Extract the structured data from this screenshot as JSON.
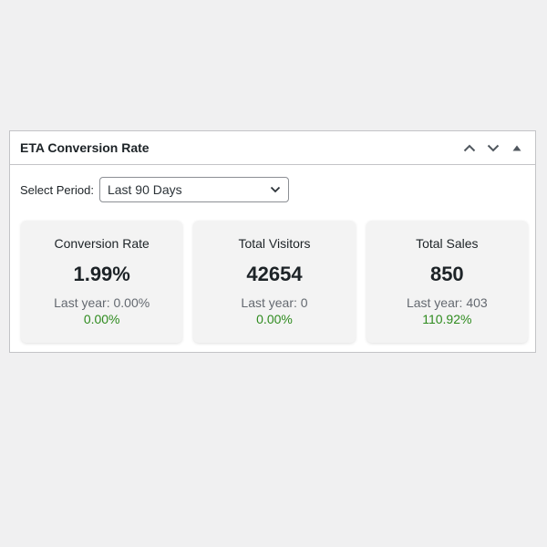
{
  "widget": {
    "title": "ETA Conversion Rate",
    "controls": {
      "move_up_icon": "chevron-up-icon",
      "move_down_icon": "chevron-down-icon",
      "toggle_icon": "triangle-up-icon"
    }
  },
  "period": {
    "label": "Select Period:",
    "selected": "Last 90 Days"
  },
  "cards": [
    {
      "title": "Conversion Rate",
      "value": "1.99%",
      "last_year": "Last year: 0.00%",
      "change": "0.00%"
    },
    {
      "title": "Total Visitors",
      "value": "42654",
      "last_year": "Last year: 0",
      "change": "0.00%"
    },
    {
      "title": "Total Sales",
      "value": "850",
      "last_year": "Last year: 403",
      "change": "110.92%"
    }
  ],
  "colors": {
    "change_positive": "#2e8b1e",
    "card_bg": "#f3f3f3",
    "border": "#c3c4c7"
  }
}
